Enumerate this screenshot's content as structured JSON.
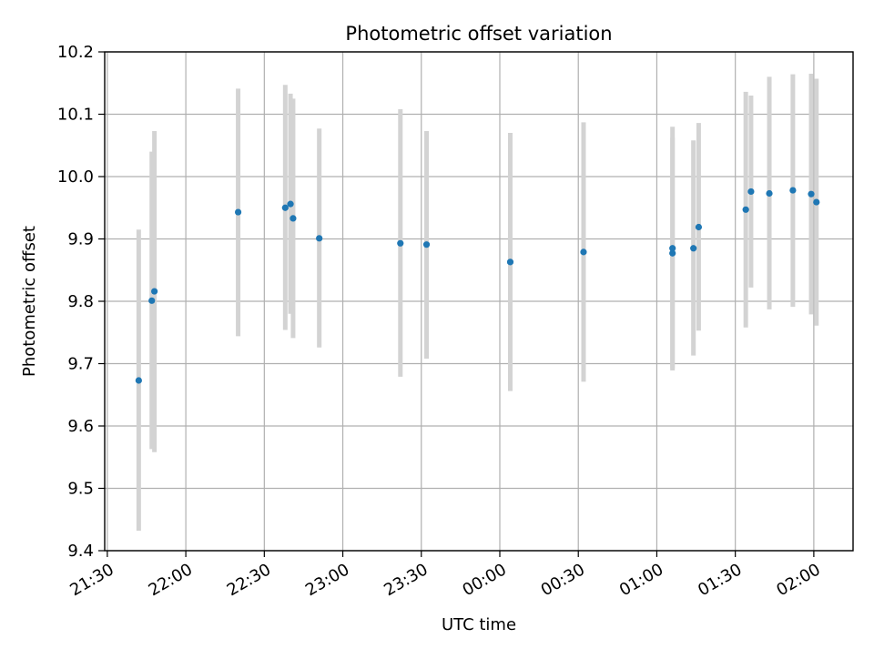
{
  "chart_data": {
    "type": "scatter",
    "title": "Photometric offset variation",
    "xlabel": "UTC time",
    "ylabel": "Photometric offset",
    "xlim": [
      "21:29",
      "02:15"
    ],
    "ylim": [
      9.4,
      10.2
    ],
    "grid": true,
    "x_ticks": [
      {
        "time": "21:30",
        "label": "21:30"
      },
      {
        "time": "22:00",
        "label": "22:00"
      },
      {
        "time": "22:30",
        "label": "22:30"
      },
      {
        "time": "23:00",
        "label": "23:00"
      },
      {
        "time": "23:30",
        "label": "23:30"
      },
      {
        "time": "00:00",
        "label": "00:00"
      },
      {
        "time": "00:30",
        "label": "00:30"
      },
      {
        "time": "01:00",
        "label": "01:00"
      },
      {
        "time": "01:30",
        "label": "01:30"
      },
      {
        "time": "02:00",
        "label": "02:00"
      }
    ],
    "y_ticks": [
      "9.4",
      "9.5",
      "9.6",
      "9.7",
      "9.8",
      "9.9",
      "10.0",
      "10.1",
      "10.2"
    ],
    "colors": {
      "points": "#1f77b4",
      "errorbars": "#d3d3d3"
    },
    "points": [
      {
        "x": "21:42",
        "y": 9.673,
        "ylo": 9.432,
        "yhi": 9.915
      },
      {
        "x": "21:47",
        "y": 9.801,
        "ylo": 9.563,
        "yhi": 10.04
      },
      {
        "x": "21:48",
        "y": 9.816,
        "ylo": 9.558,
        "yhi": 10.073
      },
      {
        "x": "22:20",
        "y": 9.943,
        "ylo": 9.744,
        "yhi": 10.141
      },
      {
        "x": "22:38",
        "y": 9.95,
        "ylo": 9.754,
        "yhi": 10.147
      },
      {
        "x": "22:40",
        "y": 9.956,
        "ylo": 9.78,
        "yhi": 10.133
      },
      {
        "x": "22:41",
        "y": 9.933,
        "ylo": 9.741,
        "yhi": 10.125
      },
      {
        "x": "22:51",
        "y": 9.901,
        "ylo": 9.726,
        "yhi": 10.077
      },
      {
        "x": "23:22",
        "y": 9.893,
        "ylo": 9.679,
        "yhi": 10.108
      },
      {
        "x": "23:32",
        "y": 9.891,
        "ylo": 9.708,
        "yhi": 10.073
      },
      {
        "x": "00:04",
        "y": 9.863,
        "ylo": 9.656,
        "yhi": 10.07
      },
      {
        "x": "00:32",
        "y": 9.879,
        "ylo": 9.671,
        "yhi": 10.087
      },
      {
        "x": "01:06",
        "y": 9.877,
        "ylo": 9.692,
        "yhi": 10.062
      },
      {
        "x": "01:06",
        "y": 9.885,
        "ylo": 9.689,
        "yhi": 10.08
      },
      {
        "x": "01:14",
        "y": 9.885,
        "ylo": 9.713,
        "yhi": 10.058
      },
      {
        "x": "01:16",
        "y": 9.919,
        "ylo": 9.753,
        "yhi": 10.086
      },
      {
        "x": "01:34",
        "y": 9.947,
        "ylo": 9.758,
        "yhi": 10.136
      },
      {
        "x": "01:36",
        "y": 9.976,
        "ylo": 9.822,
        "yhi": 10.13
      },
      {
        "x": "01:43",
        "y": 9.973,
        "ylo": 9.787,
        "yhi": 10.16
      },
      {
        "x": "01:52",
        "y": 9.978,
        "ylo": 9.791,
        "yhi": 10.164
      },
      {
        "x": "01:59",
        "y": 9.972,
        "ylo": 9.779,
        "yhi": 10.165
      },
      {
        "x": "02:01",
        "y": 9.959,
        "ylo": 9.761,
        "yhi": 10.157
      }
    ]
  }
}
